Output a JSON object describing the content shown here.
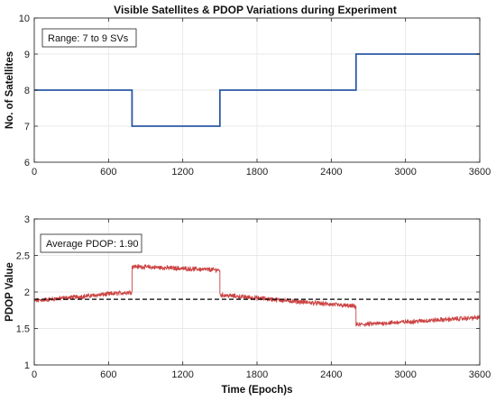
{
  "chart_data": [
    {
      "type": "line",
      "title": "Visible Satellites & PDOP Variations during Experiment",
      "xlabel": "",
      "ylabel": "No. of Satellites",
      "xlim": [
        0,
        3600
      ],
      "ylim": [
        6,
        10
      ],
      "x_ticks": [
        0,
        600,
        1200,
        1800,
        2400,
        3000,
        3600
      ],
      "y_ticks": [
        6,
        7,
        8,
        9,
        10
      ],
      "x_tick_labels": [
        "0",
        "600",
        "1200",
        "1800",
        "2400",
        "3000",
        "3600"
      ],
      "y_tick_labels": [
        "6",
        "7",
        "8",
        "9",
        "10"
      ],
      "grid": true,
      "annotation": "Range: 7 to 9 SVs",
      "annotation_placement": "top-left",
      "series": [
        {
          "style": "step",
          "color": "#2b5aa6",
          "x": [
            0,
            790,
            790,
            1500,
            1500,
            2600,
            2600,
            3600
          ],
          "y": [
            8,
            8,
            7,
            7,
            8,
            8,
            9,
            9
          ]
        }
      ]
    },
    {
      "type": "line",
      "title": "",
      "xlabel": "Time (Epoch)s",
      "ylabel": "PDOP Value",
      "xlim": [
        0,
        3600
      ],
      "ylim": [
        1,
        3
      ],
      "x_ticks": [
        0,
        600,
        1200,
        1800,
        2400,
        3000,
        3600
      ],
      "y_ticks": [
        1,
        1.5,
        2,
        2.5,
        3
      ],
      "x_tick_labels": [
        "0",
        "600",
        "1200",
        "1800",
        "2400",
        "3000",
        "3600"
      ],
      "y_tick_labels": [
        "1",
        "1.5",
        "2",
        "2.5",
        "3"
      ],
      "grid": true,
      "annotation": "Average PDOP: 1.90",
      "annotation_placement": "top-left",
      "series": [
        {
          "style": "noisy",
          "color": "#cc4444",
          "noise_amplitude": 0.025,
          "segments": [
            {
              "x": [
                0,
                790
              ],
              "y": [
                1.88,
                2.0
              ]
            },
            {
              "x": [
                790,
                1500
              ],
              "y": [
                2.35,
                2.3
              ]
            },
            {
              "x": [
                1500,
                2600
              ],
              "y": [
                1.96,
                1.8
              ]
            },
            {
              "x": [
                2600,
                3600
              ],
              "y": [
                1.55,
                1.65
              ]
            }
          ]
        },
        {
          "style": "dashed",
          "color": "#000000",
          "x": [
            0,
            3600
          ],
          "y": [
            1.9,
            1.9
          ]
        }
      ]
    }
  ]
}
